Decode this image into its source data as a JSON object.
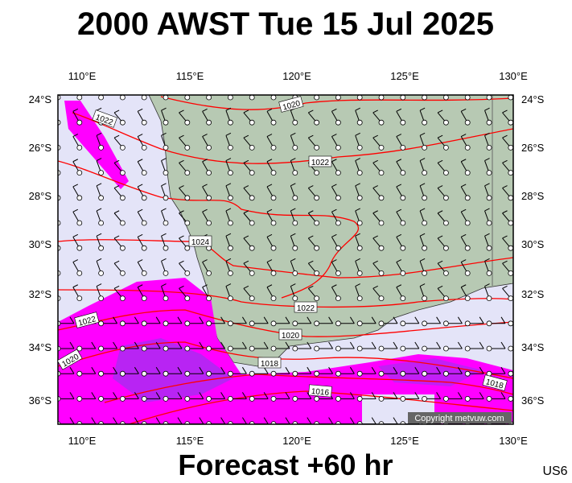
{
  "header": {
    "title": "2000 AWST Tue 15 Jul 2025"
  },
  "footer": {
    "forecast": "Forecast +60 hr",
    "code": "US6"
  },
  "copyright": "Copyright metvuw.com",
  "lon_labels": [
    "110°E",
    "115°E",
    "120°E",
    "125°E",
    "130°E"
  ],
  "lat_labels": [
    "24°S",
    "26°S",
    "28°S",
    "30°S",
    "32°S",
    "34°S",
    "36°S"
  ],
  "isobar_labels": [
    "1020",
    "1022",
    "1022",
    "1024",
    "1022",
    "1022",
    "1020",
    "1020",
    "1018",
    "1016",
    "1018"
  ]
}
